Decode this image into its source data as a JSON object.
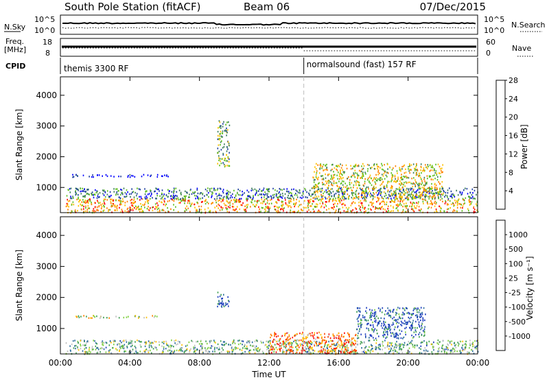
{
  "header": {
    "title": "South Pole Station (fitACF)",
    "beam": "Beam 06",
    "date": "07/Dec/2015"
  },
  "noise_panel": {
    "left_label": "N.Sky",
    "right_label": "N.Search",
    "top_tick": "10^5",
    "bottom_tick": "10^0"
  },
  "freq_panel": {
    "left_label": "Freq.",
    "left_unit": "[MHz]",
    "left_ticks": [
      "18",
      "8"
    ],
    "right_label": "Nave",
    "right_ticks": [
      "60",
      "0"
    ]
  },
  "cpid_panel": {
    "label": "CPID",
    "modes": [
      {
        "name": "themis 3300 RF",
        "start_hour": 0
      },
      {
        "name": "normalsound (fast) 157 RF",
        "start_hour": 14
      }
    ]
  },
  "colors": {
    "power_scale": [
      "#0000ff",
      "#1f3f9f",
      "#3f7f5f",
      "#5fbf1f",
      "#ffc000",
      "#ff8000",
      "#ff0000"
    ],
    "velocity_scale": [
      "#1f3fbf",
      "#2f6f9f",
      "#3f9f4f",
      "#7fcf3f",
      "#c0c0c0",
      "#ffc000",
      "#ff8000",
      "#ff4000",
      "#ff0000"
    ]
  },
  "chart_data": [
    {
      "type": "heatmap",
      "panel": "power",
      "ylabel": "Slant Range [km]",
      "xlabel": "",
      "ylim": [
        180,
        4600
      ],
      "y_ticks": [
        "1000",
        "2000",
        "3000",
        "4000"
      ],
      "x_ticks": [
        "00:00",
        "04:00",
        "08:00",
        "12:00",
        "16:00",
        "20:00",
        "00:00"
      ],
      "colorbar_label": "Power [dB]",
      "colorbar_ticks": [
        "4",
        "8",
        "12",
        "16",
        "20",
        "24",
        "28"
      ],
      "features": [
        {
          "t0": 0.3,
          "t1": 24.0,
          "r0": 200,
          "r1": 650,
          "level": 0.7
        },
        {
          "t0": 0.3,
          "t1": 24.0,
          "r0": 650,
          "r1": 1000,
          "level": 0.3
        },
        {
          "t0": 0.6,
          "t1": 6.4,
          "r0": 1360,
          "r1": 1440,
          "level": 0.05
        },
        {
          "t0": 9.0,
          "t1": 9.7,
          "r0": 1700,
          "r1": 3200,
          "level": 0.45
        },
        {
          "t0": 14.5,
          "t1": 22.0,
          "r0": 650,
          "r1": 1800,
          "level": 0.6
        }
      ]
    },
    {
      "type": "heatmap",
      "panel": "velocity",
      "ylabel": "Slant Range [km]",
      "xlabel": "Time UT",
      "ylim": [
        180,
        4600
      ],
      "y_ticks": [
        "1000",
        "2000",
        "3000",
        "4000"
      ],
      "x_ticks": [
        "00:00",
        "04:00",
        "08:00",
        "12:00",
        "16:00",
        "20:00",
        "00:00"
      ],
      "colorbar_label": "Velocity [m s⁻¹]",
      "colorbar_ticks": [
        "1000",
        "500",
        "100",
        "25",
        "-25",
        "-100",
        "-500",
        "-1000"
      ],
      "features": [
        {
          "t0": 0.3,
          "t1": 24.0,
          "r0": 200,
          "r1": 650,
          "level": 0.35
        },
        {
          "t0": 0.6,
          "t1": 6.4,
          "r0": 1360,
          "r1": 1440,
          "level": 0.5
        },
        {
          "t0": 9.0,
          "t1": 9.7,
          "r0": 1700,
          "r1": 2200,
          "level": 0.05
        },
        {
          "t0": 17.0,
          "t1": 21.0,
          "r0": 700,
          "r1": 1700,
          "level": 0.1
        },
        {
          "t0": 12.0,
          "t1": 17.0,
          "r0": 200,
          "r1": 900,
          "level": 0.75
        }
      ]
    }
  ]
}
